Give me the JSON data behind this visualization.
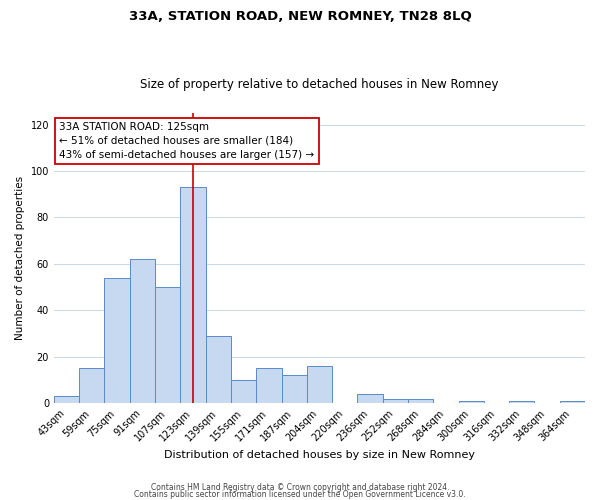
{
  "title": "33A, STATION ROAD, NEW ROMNEY, TN28 8LQ",
  "subtitle": "Size of property relative to detached houses in New Romney",
  "xlabel": "Distribution of detached houses by size in New Romney",
  "ylabel": "Number of detached properties",
  "bar_labels": [
    "43sqm",
    "59sqm",
    "75sqm",
    "91sqm",
    "107sqm",
    "123sqm",
    "139sqm",
    "155sqm",
    "171sqm",
    "187sqm",
    "204sqm",
    "220sqm",
    "236sqm",
    "252sqm",
    "268sqm",
    "284sqm",
    "300sqm",
    "316sqm",
    "332sqm",
    "348sqm",
    "364sqm"
  ],
  "bar_values": [
    3,
    15,
    54,
    62,
    50,
    93,
    29,
    10,
    15,
    12,
    16,
    0,
    4,
    2,
    2,
    0,
    1,
    0,
    1,
    0,
    1
  ],
  "bar_color": "#c6d9f1",
  "bar_edge_color": "#5b8ac9",
  "ylim": [
    0,
    125
  ],
  "yticks": [
    0,
    20,
    40,
    60,
    80,
    100,
    120
  ],
  "annotation_text": "33A STATION ROAD: 125sqm\n← 51% of detached houses are smaller (184)\n43% of semi-detached houses are larger (157) →",
  "annotation_box_color": "#ffffff",
  "annotation_box_edge_color": "#cc0000",
  "ref_line_color": "#cc0000",
  "footer1": "Contains HM Land Registry data © Crown copyright and database right 2024.",
  "footer2": "Contains public sector information licensed under the Open Government Licence v3.0.",
  "background_color": "#ffffff",
  "grid_color": "#c8d8ea",
  "title_fontsize": 9.5,
  "subtitle_fontsize": 8.5,
  "xlabel_fontsize": 8,
  "ylabel_fontsize": 7.5,
  "tick_fontsize": 7,
  "ann_fontsize": 7.5,
  "footer_fontsize": 5.5
}
